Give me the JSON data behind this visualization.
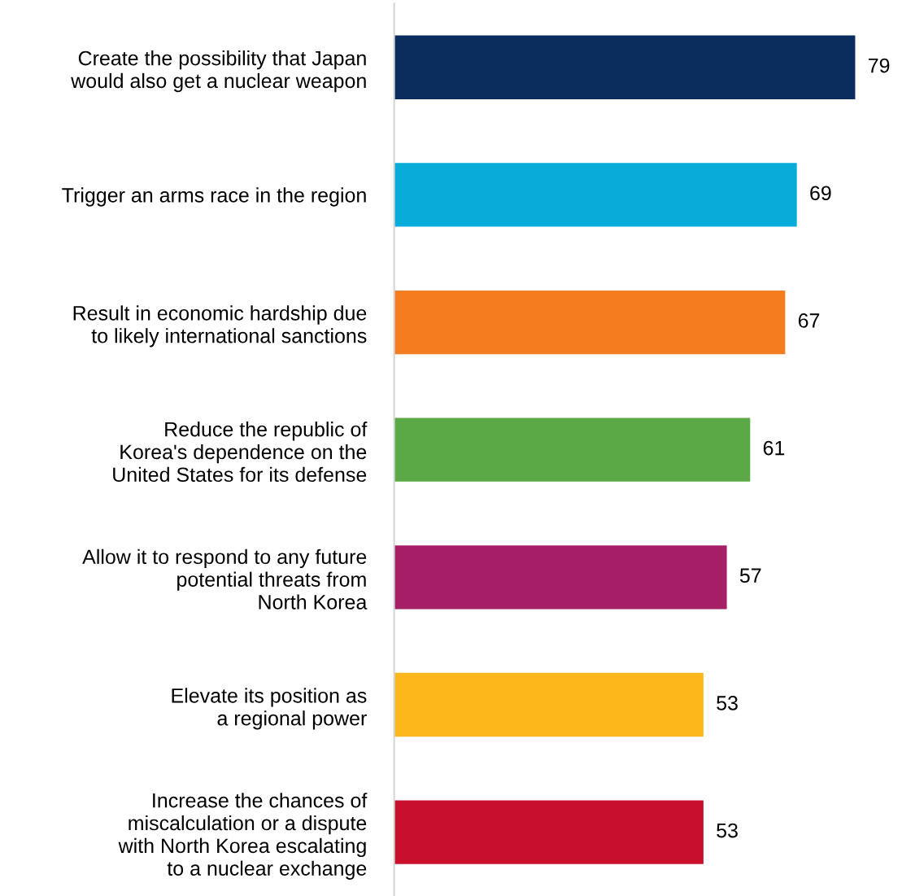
{
  "chart_data": {
    "type": "bar",
    "orientation": "horizontal",
    "categories": [
      "Create the possibility that Japan\nwould also get a nuclear weapon",
      "Trigger an arms race in the region",
      "Result in economic hardship due\nto likely international sanctions",
      "Reduce the republic of\nKorea's dependence on the\nUnited States for its defense",
      "Allow it to respond to any future\npotential threats from\nNorth Korea",
      "Elevate its position as\na regional power",
      "Increase the chances of\nmiscalculation or a dispute\nwith North Korea escalating\nto a nuclear exchange"
    ],
    "values": [
      79,
      69,
      67,
      61,
      57,
      53,
      53
    ],
    "colors": [
      "#0a2d5e",
      "#08acd8",
      "#f47d20",
      "#5aa846",
      "#a51e66",
      "#fdb71b",
      "#c8102e"
    ],
    "data_labels": true,
    "tick_labels": "y"
  }
}
